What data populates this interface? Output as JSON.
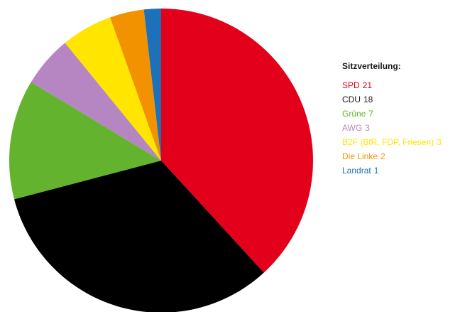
{
  "chart_data": {
    "type": "pie",
    "title": "Sitzverteilung:",
    "slices": [
      {
        "label": "SPD",
        "value": 21,
        "color": "#e2001a"
      },
      {
        "label": "CDU",
        "value": 18,
        "color": "#000000"
      },
      {
        "label": "Grüne",
        "value": 7,
        "color": "#64b32e"
      },
      {
        "label": "AWG",
        "value": 3,
        "color": "#b686c2"
      },
      {
        "label": "B2F (BfR, FDP, Friesen)",
        "value": 3,
        "color": "#ffe500"
      },
      {
        "label": "Die Linke",
        "value": 2,
        "color": "#f39200"
      },
      {
        "label": "Landrat",
        "value": 1,
        "color": "#1d71b8"
      }
    ],
    "legend_position": "right",
    "start_angle": "top",
    "direction": "clockwise"
  }
}
